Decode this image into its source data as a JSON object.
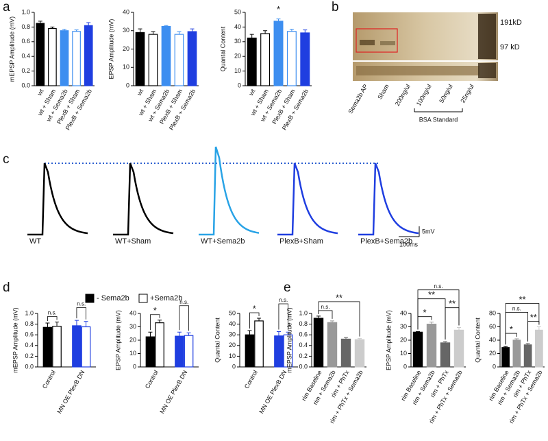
{
  "panel_labels": [
    "a",
    "b",
    "c",
    "d",
    "e"
  ],
  "chart_data": [
    {
      "type": "bar",
      "y_label": "mEPSP Amplitude (mV)",
      "categories": [
        "wt",
        "wt + Sham",
        "wt + Sema2b",
        "PlexB + Sham",
        "PlexB + Sema2b"
      ],
      "series": [
        {
          "values": [
            0.85,
            0.78,
            0.75,
            0.74,
            0.82
          ],
          "errors": [
            0.03,
            0.02,
            0.02,
            0.02,
            0.04
          ],
          "colors": [
            "#000000",
            "#000000",
            "#3d8ef0",
            "#3d8ef0",
            "#1f3ee0"
          ],
          "fills": [
            "#000000",
            "#ffffff",
            "#3d8ef0",
            "#ffffff",
            "#1f3ee0"
          ]
        }
      ],
      "ylim": [
        0,
        1
      ],
      "yticks": [
        {
          "value": 0,
          "label": "0.0"
        },
        0.2,
        0.4,
        0.6,
        0.8,
        {
          "value": 1,
          "label": "1.0"
        }
      ]
    },
    {
      "type": "bar",
      "y_label": "EPSP Amplitude (mV)",
      "categories": [
        "wt",
        "wt + Sham",
        "wt + Sema2b",
        "PlexB + Sham",
        "PlexB + Sema2b"
      ],
      "series": [
        {
          "values": [
            29,
            28,
            32.3,
            28,
            29.5
          ],
          "errors": [
            2,
            1.5,
            0.5,
            1.5,
            1.5
          ],
          "colors": [
            "#000000",
            "#000000",
            "#3d8ef0",
            "#3d8ef0",
            "#1f3ee0"
          ],
          "fills": [
            "#000000",
            "#ffffff",
            "#3d8ef0",
            "#ffffff",
            "#1f3ee0"
          ]
        }
      ],
      "ylim": [
        0,
        40
      ],
      "yticks": [
        0,
        10,
        20,
        30,
        40
      ]
    },
    {
      "type": "bar",
      "y_label": "Quantal Content",
      "categories": [
        "wt",
        "wt + Sham",
        "wt + Sema2b",
        "PlexB + Sham",
        "PlexB + Sema2b"
      ],
      "series": [
        {
          "values": [
            32.5,
            35.5,
            44,
            37,
            36
          ],
          "errors": [
            2.5,
            2,
            1.5,
            1.5,
            2
          ],
          "colors": [
            "#000000",
            "#000000",
            "#3d8ef0",
            "#3d8ef0",
            "#1f3ee0"
          ],
          "fills": [
            "#000000",
            "#ffffff",
            "#3d8ef0",
            "#ffffff",
            "#1f3ee0"
          ]
        }
      ],
      "ylim": [
        0,
        50
      ],
      "yticks": [
        0,
        10,
        20,
        30,
        40,
        50
      ],
      "brackets": [
        {
          "from": 2,
          "to": 2,
          "label": "*"
        }
      ]
    },
    {
      "type": "grouped_bar",
      "y_label": "mEPSP Amplitude (mV)",
      "categories": [
        "Control",
        "MN OE PlexB DN"
      ],
      "series": [
        {
          "name": "- Sema2b",
          "values": [
            0.74,
            0.77
          ],
          "errors": [
            0.08,
            0.1
          ],
          "colors": [
            "#000000",
            "#1f3ee0"
          ],
          "fills": [
            "#000000",
            "#1f3ee0"
          ]
        },
        {
          "name": "+Sema2b",
          "values": [
            0.76,
            0.75
          ],
          "errors": [
            0.08,
            0.1
          ],
          "colors": [
            "#000000",
            "#1f3ee0"
          ],
          "fills": [
            "#ffffff",
            "#ffffff"
          ]
        }
      ],
      "ylim": [
        0,
        1
      ],
      "yticks": [
        {
          "value": 0,
          "label": "0.0"
        },
        0.2,
        0.4,
        0.6,
        0.8,
        {
          "value": 1,
          "label": "1.0"
        }
      ],
      "brackets": [
        {
          "from": 0,
          "to": 1,
          "label": "n.s."
        },
        {
          "from": 2,
          "to": 3,
          "label": "n.s."
        }
      ]
    },
    {
      "type": "grouped_bar",
      "y_label": "EPSP Amplitude (mV)",
      "categories": [
        "Control",
        "MN OE PlexB DN"
      ],
      "series": [
        {
          "values": [
            22.5,
            23
          ],
          "errors": [
            3.5,
            3
          ],
          "colors": [
            "#000000",
            "#1f3ee0"
          ],
          "fills": [
            "#000000",
            "#1f3ee0"
          ]
        },
        {
          "values": [
            33,
            23.5
          ],
          "errors": [
            2,
            2
          ],
          "colors": [
            "#000000",
            "#1f3ee0"
          ],
          "fills": [
            "#ffffff",
            "#ffffff"
          ]
        }
      ],
      "ylim": [
        0,
        40
      ],
      "yticks": [
        0,
        10,
        20,
        30,
        40
      ],
      "brackets": [
        {
          "from": 0,
          "to": 1,
          "label": "*"
        },
        {
          "from": 2,
          "to": 3,
          "label": "n.s."
        }
      ]
    },
    {
      "type": "grouped_bar",
      "y_label": "Quantal Content",
      "categories": [
        "Control",
        "MN OE PlexB DN"
      ],
      "series": [
        {
          "values": [
            30,
            29
          ],
          "errors": [
            4,
            4
          ],
          "colors": [
            "#000000",
            "#1f3ee0"
          ],
          "fills": [
            "#000000",
            "#1f3ee0"
          ]
        },
        {
          "values": [
            43,
            30
          ],
          "errors": [
            2.5,
            2.5
          ],
          "colors": [
            "#000000",
            "#1f3ee0"
          ],
          "fills": [
            "#ffffff",
            "#ffffff"
          ]
        }
      ],
      "ylim": [
        0,
        50
      ],
      "yticks": [
        0,
        10,
        20,
        30,
        40,
        50
      ],
      "brackets": [
        {
          "from": 0,
          "to": 1,
          "label": "*"
        },
        {
          "from": 2,
          "to": 3,
          "label": "n.s."
        }
      ]
    },
    {
      "type": "bar",
      "y_label": "mEPSP Amplitude (mV)",
      "categories": [
        "rim Baseline",
        "rim + Sema2b",
        "rim + PhTx",
        "rim + PhTx + Sema2b"
      ],
      "series": [
        {
          "values": [
            0.91,
            0.83,
            0.52,
            0.51
          ],
          "errors": [
            0.04,
            0.03,
            0.03,
            0.02
          ],
          "colors": [
            "#000000",
            "#999999",
            "#666666",
            "#cccccc"
          ],
          "fills": [
            "#000000",
            "#999999",
            "#666666",
            "#cccccc"
          ]
        }
      ],
      "ylim": [
        0,
        1
      ],
      "yticks": [
        {
          "value": 0,
          "label": "0.0"
        },
        0.2,
        0.4,
        0.6,
        0.8,
        {
          "value": 1,
          "label": "1.0"
        }
      ],
      "brackets": [
        {
          "from": 0,
          "to": 1,
          "label": "n.s."
        },
        {
          "from": 0,
          "to": 3,
          "label": "**"
        }
      ]
    },
    {
      "type": "bar",
      "y_label": "EPSP Amplitude (mV)",
      "categories": [
        "rim Baseline",
        "rim + Sema2b",
        "rim + PhTx",
        "rim + PhTx + Sema2b"
      ],
      "series": [
        {
          "values": [
            26,
            32,
            18,
            27.5
          ],
          "errors": [
            0.5,
            1.5,
            1,
            2
          ],
          "colors": [
            "#000000",
            "#999999",
            "#666666",
            "#cccccc"
          ],
          "fills": [
            "#000000",
            "#999999",
            "#666666",
            "#cccccc"
          ]
        }
      ],
      "ylim": [
        0,
        40
      ],
      "yticks": [
        0,
        10,
        20,
        30,
        40
      ],
      "brackets": [
        {
          "from": 0,
          "to": 1,
          "label": "*"
        },
        {
          "from": 2,
          "to": 3,
          "label": "**"
        },
        {
          "from": 0,
          "to": 2,
          "label": "**"
        },
        {
          "from": 0,
          "to": 3,
          "label": "n.s."
        }
      ]
    },
    {
      "type": "bar",
      "y_label": "Quantal Content",
      "categories": [
        "rim Baseline",
        "rim + Sema2b",
        "rim + PhTx",
        "rim + PhTx + Sema2b"
      ],
      "series": [
        {
          "values": [
            29,
            40,
            33,
            55
          ],
          "errors": [
            1.5,
            2,
            2,
            5
          ],
          "colors": [
            "#000000",
            "#999999",
            "#666666",
            "#cccccc"
          ],
          "fills": [
            "#000000",
            "#999999",
            "#666666",
            "#cccccc"
          ]
        }
      ],
      "ylim": [
        0,
        80
      ],
      "yticks": [
        0,
        20,
        40,
        60,
        80
      ],
      "brackets": [
        {
          "from": 0,
          "to": 1,
          "label": "*"
        },
        {
          "from": 2,
          "to": 3,
          "label": "**"
        },
        {
          "from": 0,
          "to": 2,
          "label": "n.s."
        },
        {
          "from": 0,
          "to": 3,
          "label": "**"
        }
      ]
    }
  ],
  "blot": {
    "markers": [
      "191kD",
      "97 kD"
    ],
    "lanes": [
      "Sema2b AP",
      "Sham",
      "200ng/ul",
      "100ng/ul",
      "50ng/ul",
      "25ng/ul"
    ],
    "group_label": "BSA Standard"
  },
  "traces": {
    "labels": [
      {
        "text": "WT",
        "color": "#000000"
      },
      {
        "text": "WT+Sham",
        "color": "#000000"
      },
      {
        "text": "WT+Sema2b",
        "color": "#29a3e6"
      },
      {
        "text": "PlexB+Sham",
        "color": "#1f3ee0"
      },
      {
        "text": "PlexB+Sema2b",
        "color": "#1f3ee0"
      }
    ],
    "scale": [
      "5mV",
      "100ms"
    ]
  }
}
